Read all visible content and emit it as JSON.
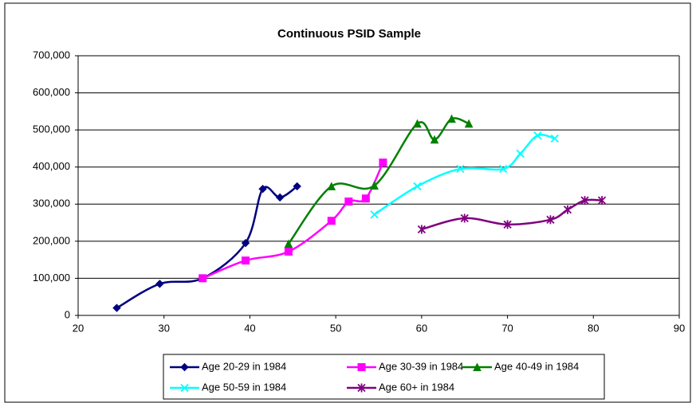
{
  "chart_data": {
    "type": "line",
    "title": "Continuous PSID Sample",
    "smooth": true,
    "grid": true,
    "xlim": [
      20,
      90
    ],
    "xticks": [
      20,
      30,
      40,
      50,
      60,
      70,
      80,
      90
    ],
    "ylim": [
      0,
      700000
    ],
    "yticks": [
      0,
      {
        "value": 100000,
        "label": "100,000"
      },
      {
        "value": 200000,
        "label": "200,000"
      },
      {
        "value": 300000,
        "label": "300,000"
      },
      {
        "value": 400000,
        "label": "400,000"
      },
      {
        "value": 500000,
        "label": "500,000"
      },
      {
        "value": 600000,
        "label": "600,000"
      },
      {
        "value": 700000,
        "label": "700,000"
      }
    ],
    "series": [
      {
        "name": "Age 20-29 in 1984",
        "color": "#000080",
        "marker": "diamond",
        "x": [
          24.5,
          29.5,
          34.5,
          39.5,
          41.5,
          43.5,
          45.5
        ],
        "values": [
          20000,
          85000,
          100000,
          195000,
          341000,
          318000,
          348000
        ]
      },
      {
        "name": "Age 30-39 in 1984",
        "color": "#ff00ff",
        "marker": "square",
        "x": [
          34.5,
          39.5,
          44.5,
          49.5,
          51.5,
          53.5,
          55.5
        ],
        "values": [
          100000,
          148000,
          172000,
          255000,
          307000,
          315000,
          412000
        ]
      },
      {
        "name": "Age 40-49 in 1984",
        "color": "#008000",
        "marker": "triangle",
        "x": [
          44.5,
          49.5,
          54.5,
          59.5,
          61.5,
          63.5,
          65.5
        ],
        "values": [
          193000,
          348000,
          350000,
          517000,
          474000,
          530000,
          517000
        ]
      },
      {
        "name": "Age 50-59 in 1984",
        "color": "#00ffff",
        "marker": "x",
        "x": [
          54.5,
          59.5,
          64.5,
          69.5,
          71.5,
          73.5,
          75.5
        ],
        "values": [
          272000,
          348000,
          395000,
          395000,
          436000,
          485000,
          477000
        ]
      },
      {
        "name": "Age 60+ in 1984",
        "color": "#800080",
        "marker": "asterisk",
        "x": [
          60,
          65,
          70,
          75,
          77,
          79,
          81
        ],
        "values": [
          232000,
          262000,
          245000,
          258000,
          285000,
          310000,
          310000
        ]
      }
    ]
  }
}
